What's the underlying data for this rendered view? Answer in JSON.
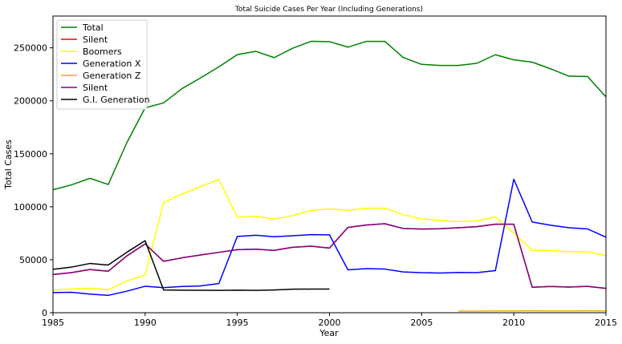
{
  "chart_data": {
    "type": "line",
    "title": "Total Suicide Cases Per Year (Including Generations)",
    "xlabel": "Year",
    "ylabel": "Total Cases",
    "xlim": [
      1985,
      2015
    ],
    "ylim": [
      0,
      280000
    ],
    "xticks": [
      1985,
      1990,
      1995,
      2000,
      2005,
      2010,
      2015
    ],
    "yticks": [
      0,
      50000,
      100000,
      150000,
      200000,
      250000
    ],
    "grid": false,
    "legend_position": "top-left",
    "series": [
      {
        "name": "Total",
        "color": "#008000",
        "x": [
          1985,
          1986,
          1987,
          1988,
          1989,
          1990,
          1991,
          1992,
          1993,
          1994,
          1995,
          1996,
          1997,
          1998,
          1999,
          2000,
          2001,
          2002,
          2003,
          2004,
          2005,
          2006,
          2007,
          2008,
          2009,
          2010,
          2011,
          2012,
          2013,
          2014,
          2015
        ],
        "values": [
          116063,
          120670,
          126842,
          121026,
          160244,
          193361,
          198020,
          211473,
          221565,
          232063,
          243544,
          246725,
          240745,
          249591,
          256119,
          255832,
          250652,
          256095,
          256079,
          240861,
          234375,
          233361,
          233408,
          235447,
          243487,
          238702,
          236484,
          230160,
          223199,
          222984,
          203640
        ]
      },
      {
        "name": "Silent",
        "color": "#ff0000",
        "x": [
          1985,
          1986,
          1987,
          1988,
          1989,
          1990,
          1991,
          1992,
          1993,
          1994,
          1995,
          1996,
          1997,
          1998,
          1999,
          2000,
          2001,
          2002,
          2003,
          2004,
          2005,
          2006,
          2007,
          2008,
          2009,
          2010,
          2011,
          2012,
          2013,
          2014,
          2015
        ],
        "values": [
          36000,
          37800,
          40800,
          39200,
          53500,
          65000,
          48500,
          51800,
          54500,
          57000,
          59500,
          60000,
          58800,
          61800,
          62800,
          61000,
          80500,
          82800,
          84000,
          79500,
          79000,
          79300,
          80200,
          81300,
          83500,
          83500,
          24000,
          24800,
          24200,
          24900,
          23000
        ]
      },
      {
        "name": "Boomers",
        "color": "#ffff00",
        "x": [
          1985,
          1986,
          1987,
          1988,
          1989,
          1990,
          1991,
          1992,
          1993,
          1994,
          1995,
          1996,
          1997,
          1998,
          1999,
          2000,
          2001,
          2002,
          2003,
          2004,
          2005,
          2006,
          2007,
          2008,
          2009,
          2010,
          2011,
          2012,
          2013,
          2014,
          2015
        ],
        "values": [
          21500,
          22300,
          23100,
          21700,
          29800,
          35500,
          104000,
          112000,
          119000,
          125800,
          90000,
          91200,
          88300,
          91700,
          96500,
          98000,
          96700,
          98700,
          98700,
          92500,
          88600,
          87000,
          86000,
          86700,
          90600,
          75000,
          59000,
          58700,
          57500,
          57600,
          53800
        ]
      },
      {
        "name": "Generation X",
        "color": "#0000ff",
        "x": [
          1985,
          1986,
          1987,
          1988,
          1989,
          1990,
          1991,
          1992,
          1993,
          1994,
          1995,
          1996,
          1997,
          1998,
          1999,
          2000,
          2001,
          2002,
          2003,
          2004,
          2005,
          2006,
          2007,
          2008,
          2009,
          2010,
          2011,
          2012,
          2013,
          2014,
          2015
        ],
        "values": [
          19000,
          19300,
          17600,
          16400,
          20300,
          25000,
          23600,
          24800,
          25300,
          27500,
          72000,
          73100,
          71700,
          72600,
          73700,
          73500,
          40500,
          41600,
          41200,
          38500,
          37800,
          37500,
          38000,
          37800,
          39700,
          126000,
          85600,
          82600,
          80200,
          79100,
          71300
        ]
      },
      {
        "name": "Generation Z",
        "color": "#ffa500",
        "x": [
          2007,
          2008,
          2009,
          2010,
          2011,
          2012,
          2013,
          2014,
          2015
        ],
        "values": [
          1500,
          1500,
          1700,
          1700,
          1800,
          1700,
          1700,
          1800,
          1700
        ]
      },
      {
        "name": "Silent",
        "color": "#800080",
        "x": [
          1985,
          1986,
          1987,
          1988,
          1989,
          1990,
          1991,
          1992,
          1993,
          1994,
          1995,
          1996,
          1997,
          1998,
          1999,
          2000,
          2001,
          2002,
          2003,
          2004,
          2005,
          2006,
          2007,
          2008,
          2009,
          2010,
          2011,
          2012,
          2013,
          2014,
          2015
        ],
        "values": [
          36000,
          37800,
          40800,
          39200,
          53500,
          65000,
          48500,
          51800,
          54500,
          57000,
          59500,
          60000,
          58800,
          61800,
          62800,
          61000,
          80500,
          82800,
          84000,
          79500,
          79000,
          79300,
          80200,
          81300,
          83500,
          83500,
          24000,
          24800,
          24200,
          24900,
          23000
        ]
      },
      {
        "name": "G.I. Generation",
        "color": "#000000",
        "x": [
          1985,
          1986,
          1987,
          1988,
          1989,
          1990,
          1991,
          1992,
          1993,
          1994,
          1995,
          1996,
          1997,
          1998,
          1999,
          2000
        ],
        "values": [
          41000,
          43000,
          46500,
          45000,
          57000,
          68000,
          21500,
          21300,
          21200,
          21100,
          21300,
          21100,
          21500,
          22200,
          22300,
          22300
        ]
      }
    ]
  }
}
